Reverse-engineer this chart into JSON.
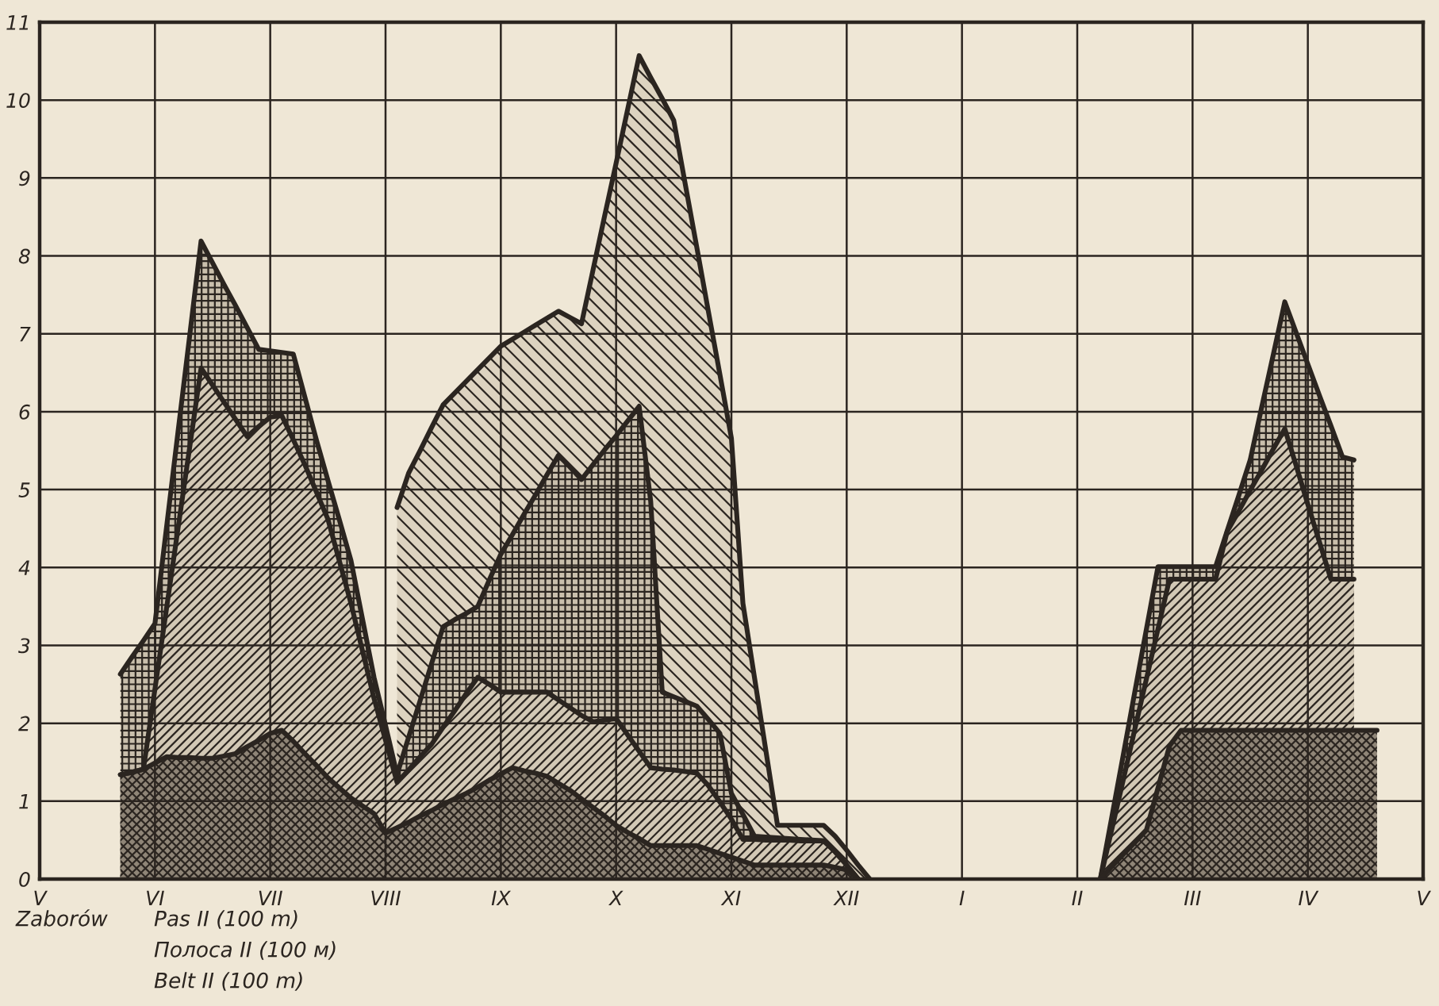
{
  "chart_data": {
    "type": "area",
    "categories": [
      "V",
      null,
      null,
      null,
      null,
      null,
      null,
      null,
      null,
      null,
      "VI",
      null,
      null,
      null,
      null,
      null,
      null,
      null,
      null,
      null,
      "VII",
      null,
      null,
      null,
      null,
      null,
      null,
      null,
      null,
      null,
      "VIII",
      null,
      null,
      null,
      null,
      null,
      null,
      null,
      null,
      null,
      "IX",
      null,
      null,
      null,
      null,
      null,
      null,
      null,
      null,
      null,
      "X",
      null,
      null,
      null,
      null,
      null,
      null,
      null,
      null,
      null,
      "XI",
      null,
      null,
      null,
      null,
      null,
      null,
      null,
      null,
      null,
      "XII",
      null,
      null,
      null,
      null,
      null,
      null,
      null,
      null,
      null,
      "I",
      null,
      null,
      null,
      null,
      null,
      null,
      null,
      null,
      null,
      "II",
      null,
      null,
      null,
      null,
      null,
      null,
      null,
      null,
      null,
      "III",
      null,
      null,
      null,
      null,
      null,
      null,
      null,
      null,
      null,
      "IV",
      null,
      null,
      null,
      null,
      null,
      null,
      null,
      null,
      null,
      "V"
    ],
    "ylim": [
      0,
      11
    ],
    "yticks": [
      0,
      1,
      2,
      3,
      4,
      5,
      6,
      7,
      8,
      9,
      10,
      11
    ],
    "grid": true,
    "annotations": [
      "Zaborów",
      "Pas II (100 m)",
      "Полоса II (100 м)",
      "Belt II (100 m)"
    ],
    "series": [
      {
        "color": "#8f8577",
        "values": [
          null,
          null,
          null,
          null,
          null,
          null,
          null,
          1.34,
          1.37,
          1.41,
          1.49,
          1.57,
          1.56,
          1.56,
          1.55,
          1.55,
          1.58,
          1.61,
          1.7,
          1.78,
          1.87,
          1.91,
          1.77,
          1.61,
          1.46,
          1.3,
          1.17,
          1.04,
          0.94,
          0.84,
          0.59,
          0.66,
          0.73,
          0.81,
          0.88,
          0.96,
          1.03,
          1.1,
          1.18,
          1.27,
          1.35,
          1.43,
          1.39,
          1.36,
          1.32,
          1.23,
          1.14,
          1.03,
          0.92,
          0.81,
          0.69,
          0.6,
          0.52,
          0.43,
          0.43,
          0.43,
          0.43,
          0.43,
          0.38,
          0.33,
          0.28,
          0.23,
          0.18,
          0.18,
          0.18,
          0.18,
          0.18,
          0.18,
          0.18,
          0.15,
          0.12,
          0,
          null,
          null,
          null,
          null,
          null,
          null,
          null,
          null,
          null,
          null,
          null,
          null,
          null,
          null,
          null,
          null,
          null,
          null,
          null,
          null,
          0,
          0.16,
          0.32,
          0.47,
          0.63,
          1.17,
          1.71,
          1.91,
          1.91,
          1.91,
          1.91,
          1.91,
          1.91,
          1.91,
          1.91,
          1.91,
          1.91,
          1.91,
          1.91,
          1.91,
          1.91,
          1.91,
          1.91,
          1.91,
          1.91,
          null,
          null,
          null,
          null
        ]
      },
      {
        "color": "#d2c8b5",
        "values": [
          null,
          null,
          null,
          null,
          null,
          null,
          null,
          1.34,
          1.37,
          1.41,
          2.44,
          3.47,
          4.5,
          5.53,
          6.56,
          6.34,
          6.12,
          5.9,
          5.68,
          5.81,
          5.93,
          5.95,
          5.64,
          5.32,
          4.97,
          4.62,
          4.08,
          3.54,
          2.93,
          2.32,
          1.78,
          1.24,
          1.4,
          1.57,
          1.73,
          1.95,
          2.16,
          2.38,
          2.59,
          2.5,
          2.4,
          2.4,
          2.4,
          2.4,
          2.4,
          2.3,
          2.2,
          2.1,
          2.02,
          2.04,
          2.06,
          1.85,
          1.64,
          1.43,
          1.41,
          1.4,
          1.38,
          1.36,
          1.2,
          0.99,
          0.77,
          0.51,
          0.51,
          0.5,
          0.5,
          0.5,
          0.49,
          0.49,
          0.49,
          0.35,
          0.18,
          0,
          null,
          null,
          null,
          null,
          null,
          null,
          null,
          null,
          null,
          null,
          null,
          null,
          null,
          null,
          null,
          null,
          null,
          null,
          null,
          null,
          0,
          0.64,
          1.28,
          1.93,
          2.57,
          3.21,
          3.85,
          3.85,
          3.85,
          3.85,
          3.85,
          4.46,
          4.72,
          4.99,
          5.25,
          5.52,
          5.78,
          5.3,
          4.81,
          4.33,
          3.85,
          3.85,
          3.85,
          null,
          null,
          null,
          null,
          null,
          null
        ]
      },
      {
        "color": "#c9bfac",
        "values": [
          null,
          null,
          null,
          null,
          null,
          null,
          null,
          2.63,
          2.85,
          3.06,
          3.28,
          4.51,
          5.74,
          6.96,
          8.19,
          7.91,
          7.63,
          7.36,
          7.08,
          6.8,
          6.78,
          6.76,
          6.74,
          6.19,
          5.64,
          5.12,
          4.61,
          4.09,
          3.34,
          2.59,
          1.97,
          1.34,
          1.82,
          2.29,
          2.77,
          3.24,
          3.33,
          3.41,
          3.5,
          3.84,
          4.17,
          4.42,
          4.68,
          4.93,
          5.19,
          5.44,
          5.29,
          5.13,
          5.32,
          5.51,
          5.69,
          5.88,
          6.07,
          4.85,
          2.4,
          2.34,
          2.28,
          2.22,
          2.05,
          1.87,
          1.1,
          0.83,
          0.55,
          0.54,
          0.53,
          0.52,
          0.51,
          0.5,
          0.49,
          0.35,
          0.18,
          0,
          null,
          null,
          null,
          null,
          null,
          null,
          null,
          null,
          null,
          null,
          null,
          null,
          null,
          null,
          null,
          null,
          null,
          null,
          null,
          null,
          0,
          0.8,
          1.6,
          2.41,
          3.21,
          4.01,
          4.01,
          4.01,
          4.01,
          4.01,
          4.01,
          4.47,
          4.92,
          5.38,
          6.06,
          6.73,
          7.41,
          7.01,
          6.61,
          6.21,
          5.82,
          5.42,
          5.38,
          null,
          null,
          null,
          null,
          null,
          null
        ]
      },
      {
        "color": "#ddd3c0",
        "values": [
          null,
          null,
          null,
          null,
          null,
          null,
          null,
          null,
          null,
          null,
          null,
          null,
          null,
          null,
          null,
          null,
          null,
          null,
          null,
          null,
          null,
          null,
          null,
          null,
          null,
          null,
          null,
          null,
          null,
          null,
          null,
          4.77,
          5.21,
          5.5,
          5.8,
          6.09,
          6.24,
          6.39,
          6.54,
          6.69,
          6.84,
          6.93,
          7.02,
          7.11,
          7.2,
          7.29,
          7.21,
          7.13,
          7.82,
          8.51,
          9.19,
          9.88,
          10.57,
          10.29,
          10.02,
          9.74,
          8.92,
          8.11,
          7.29,
          6.48,
          5.66,
          3.54,
          2.59,
          1.64,
          0.69,
          0.69,
          0.69,
          0.69,
          0.69,
          0.55,
          0.37,
          0.18,
          0,
          null,
          null,
          null,
          null,
          null,
          null,
          null,
          null,
          null,
          null,
          null,
          null,
          null,
          null,
          null,
          null,
          null,
          null,
          null,
          null,
          null,
          null,
          null,
          null,
          null,
          null,
          null,
          null,
          null,
          null,
          null,
          null,
          null,
          null,
          null,
          null,
          null,
          null,
          null,
          null,
          null,
          null,
          null,
          null,
          null,
          null,
          null,
          null
        ]
      }
    ]
  }
}
